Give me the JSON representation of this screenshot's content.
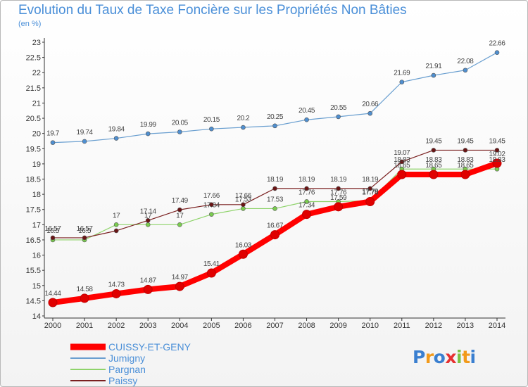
{
  "title": "Evolution du Taux de Taxe Foncière sur les Propriétés Non Bâties",
  "subtitle": "(en %)",
  "logo": "Proxiti",
  "chart_data": {
    "type": "line",
    "x": [
      "2000",
      "2001",
      "2002",
      "2003",
      "2004",
      "2005",
      "2006",
      "2007",
      "2008",
      "2009",
      "2010",
      "2011",
      "2012",
      "2013",
      "2014"
    ],
    "ylim": [
      14,
      23
    ],
    "yticks": [
      "14",
      "14.5",
      "15",
      "15.5",
      "16",
      "16.5",
      "17",
      "17.5",
      "18",
      "18.5",
      "19",
      "19.5",
      "20",
      "20.5",
      "21",
      "21.5",
      "22",
      "22.5",
      "23"
    ],
    "grid": false,
    "legend_position": "bottom-left",
    "series": [
      {
        "name": "CUISSY-ET-GENY",
        "color": "#ff0000",
        "marker": "#e00000",
        "width": 8,
        "values": [
          14.44,
          14.58,
          14.73,
          14.87,
          14.97,
          15.41,
          16.03,
          16.67,
          17.34,
          17.59,
          17.76,
          18.65,
          18.65,
          18.65,
          19.02
        ],
        "labels": [
          "14.44",
          "14.58",
          "14.73",
          "14.87",
          "14.97",
          "15.41",
          "16.03",
          "16.67",
          "17.34",
          "17.59",
          "17.76",
          "18.65",
          "18.65",
          "18.65",
          "19.02"
        ]
      },
      {
        "name": "Jumigny",
        "color": "#6a9fd0",
        "marker": "#4f8fd0",
        "width": 1.2,
        "values": [
          19.7,
          19.74,
          19.84,
          19.99,
          20.05,
          20.15,
          20.2,
          20.25,
          20.45,
          20.55,
          20.66,
          21.69,
          21.91,
          22.08,
          22.66
        ],
        "labels": [
          "19.7",
          "19.74",
          "19.84",
          "19.99",
          "20.05",
          "20.15",
          "20.2",
          "20.25",
          "20.45",
          "20.55",
          "20.66",
          "21.69",
          "21.91",
          "22.08",
          "22.66"
        ]
      },
      {
        "name": "Pargnan",
        "color": "#8ed36a",
        "marker": "#7acb4f",
        "width": 1.2,
        "values": [
          16.5,
          16.5,
          17,
          17,
          17,
          17.34,
          17.53,
          17.53,
          17.76,
          17.76,
          17.79,
          18.83,
          18.83,
          18.83,
          18.83
        ],
        "labels": [
          "16.5",
          "16.5",
          "17",
          "17",
          "17",
          "17.34",
          "17.53",
          "17.53",
          "17.76",
          "17.76",
          "17.79",
          "18.83",
          "18.83",
          "18.83",
          "18.83"
        ]
      },
      {
        "name": "Paissy",
        "color": "#7a2020",
        "marker": "#6a1515",
        "width": 1.2,
        "values": [
          16.57,
          16.57,
          16.8,
          17.14,
          17.49,
          17.66,
          17.66,
          18.19,
          18.19,
          18.19,
          18.19,
          19.07,
          19.45,
          19.45,
          19.45
        ],
        "labels": [
          "16.57",
          "16.57",
          "",
          "17.14",
          "17.49",
          "17.66",
          "17.66",
          "18.19",
          "18.19",
          "18.19",
          "18.19",
          "19.07",
          "19.45",
          "19.45",
          "19.45"
        ]
      }
    ]
  }
}
